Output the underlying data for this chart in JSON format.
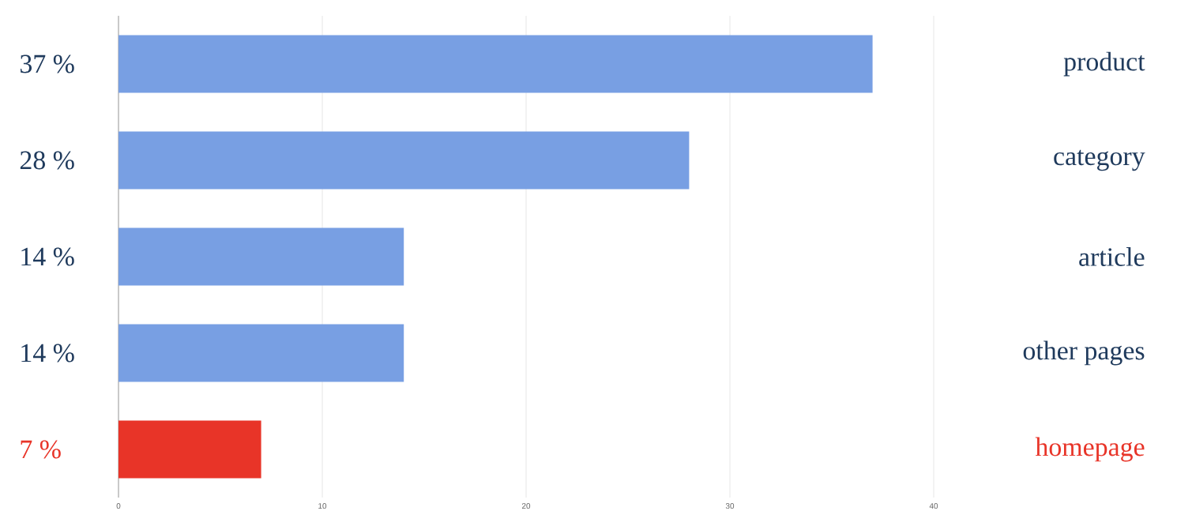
{
  "chart_data": {
    "type": "bar",
    "orientation": "horizontal",
    "categories": [
      "product",
      "category",
      "article",
      "other pages",
      "homepage"
    ],
    "values": [
      37,
      28,
      14,
      14,
      7
    ],
    "value_labels": [
      "37 %",
      "28 %",
      "14 %",
      "14 %",
      "7 %"
    ],
    "colors": [
      "#789fe3",
      "#789fe3",
      "#789fe3",
      "#789fe3",
      "#e83428"
    ],
    "xlim": [
      0,
      40
    ],
    "xticks": [
      0,
      10,
      20,
      30,
      40
    ],
    "grid": "x"
  }
}
